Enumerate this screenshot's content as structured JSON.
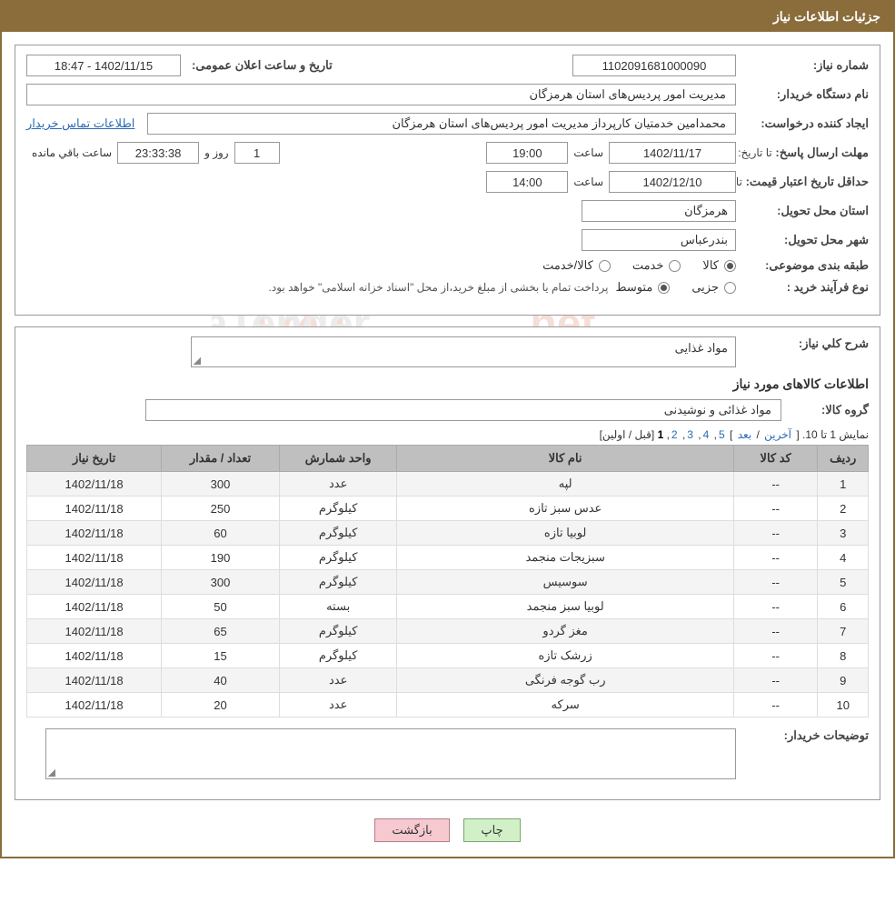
{
  "title_bar": "جزئیات اطلاعات نیاز",
  "labels": {
    "need_number": "شماره نیاز:",
    "announce_datetime": "تاریخ و ساعت اعلان عمومی:",
    "buyer_org_name": "نام دستگاه خریدار:",
    "requester": "ایجاد کننده درخواست:",
    "contact_link": "اطلاعات تماس خریدار",
    "deadline": "مهلت ارسال پاسخ:",
    "until_date": "تا تاریخ:",
    "time": "ساعت",
    "days_and": "روز و",
    "time_remaining": "ساعت باقي مانده",
    "min_price_validity": "حداقل تاریخ اعتبار قیمت:",
    "delivery_province": "استان محل تحویل:",
    "delivery_city": "شهر محل تحویل:",
    "subject_category": "طبقه بندی موضوعی:",
    "purchase_type": "نوع فرآیند خرید :",
    "goods": "کالا",
    "service": "خدمت",
    "goods_service": "کالا/خدمت",
    "partial": "جزیی",
    "medium": "متوسط",
    "purchase_note": "پرداخت تمام یا بخشی از مبلغ خرید،از محل \"اسناد خزانه اسلامی\" خواهد بود.",
    "general_desc": "شرح کلي نیاز:",
    "goods_info_heading": "اطلاعات کالاهای مورد نیاز",
    "goods_group": "گروه کالا:",
    "buyer_notes": "توضیحات خریدار:"
  },
  "fields": {
    "need_number": "1102091681000090",
    "announce_datetime": "1402/11/15 - 18:47",
    "buyer_org_name": "مدیریت امور پردیس‌های استان هرمزگان",
    "requester": "محمدامین خدمتیان کارپرداز مدیریت امور پردیس‌های استان هرمزگان",
    "deadline_date": "1402/11/17",
    "deadline_time": "19:00",
    "remaining_days": "1",
    "remaining_time": "23:33:38",
    "min_price_date": "1402/12/10",
    "min_price_time": "14:00",
    "delivery_province": "هرمزگان",
    "delivery_city": "بندرعباس",
    "general_desc": "مواد غذایی",
    "goods_group": "مواد غذائی و نوشیدنی"
  },
  "radios": {
    "category": "goods",
    "purchase": "medium"
  },
  "pager": {
    "text_prefix": "نمایش 1 تا 10. [",
    "last": "آخرین",
    "next": "بعد",
    "pages": [
      "5",
      "4",
      "3",
      "2"
    ],
    "current": "1",
    "text_suffix": " [قبل / اولین]",
    "sep": " / ",
    "close": "] "
  },
  "table": {
    "headers": {
      "row": "ردیف",
      "code": "کد کالا",
      "name": "نام کالا",
      "unit": "واحد شمارش",
      "qty": "تعداد / مقدار",
      "date": "تاریخ نیاز"
    },
    "col_widths": {
      "row": "6%",
      "code": "10%",
      "name": "40%",
      "unit": "14%",
      "qty": "14%",
      "date": "16%"
    },
    "rows": [
      {
        "row": "1",
        "code": "--",
        "name": "لپه",
        "unit": "عدد",
        "qty": "300",
        "date": "1402/11/18"
      },
      {
        "row": "2",
        "code": "--",
        "name": "عدس سبز تازه",
        "unit": "کیلوگرم",
        "qty": "250",
        "date": "1402/11/18"
      },
      {
        "row": "3",
        "code": "--",
        "name": "لوبیا تازه",
        "unit": "کیلوگرم",
        "qty": "60",
        "date": "1402/11/18"
      },
      {
        "row": "4",
        "code": "--",
        "name": "سبزیجات منجمد",
        "unit": "کیلوگرم",
        "qty": "190",
        "date": "1402/11/18"
      },
      {
        "row": "5",
        "code": "--",
        "name": "سوسیس",
        "unit": "کیلوگرم",
        "qty": "300",
        "date": "1402/11/18"
      },
      {
        "row": "6",
        "code": "--",
        "name": "لوبیا سبز منجمد",
        "unit": "بسته",
        "qty": "50",
        "date": "1402/11/18"
      },
      {
        "row": "7",
        "code": "--",
        "name": "مغز گردو",
        "unit": "کیلوگرم",
        "qty": "65",
        "date": "1402/11/18"
      },
      {
        "row": "8",
        "code": "--",
        "name": "زرشک تازه",
        "unit": "کیلوگرم",
        "qty": "15",
        "date": "1402/11/18"
      },
      {
        "row": "9",
        "code": "--",
        "name": "رب گوجه فرنگی",
        "unit": "عدد",
        "qty": "40",
        "date": "1402/11/18"
      },
      {
        "row": "10",
        "code": "--",
        "name": "سرکه",
        "unit": "عدد",
        "qty": "20",
        "date": "1402/11/18"
      }
    ]
  },
  "buttons": {
    "print": "چاپ",
    "back": "بازگشت"
  },
  "colors": {
    "header_bg": "#8a6d3b",
    "header_text": "#ffffff",
    "border": "#999999",
    "link": "#2a6bb5",
    "table_header_bg": "#bfbfbf",
    "row_odd": "#f4f4f4",
    "row_even": "#ffffff",
    "btn_green": "#d2f0c8",
    "btn_pink": "#f5c9cf"
  }
}
